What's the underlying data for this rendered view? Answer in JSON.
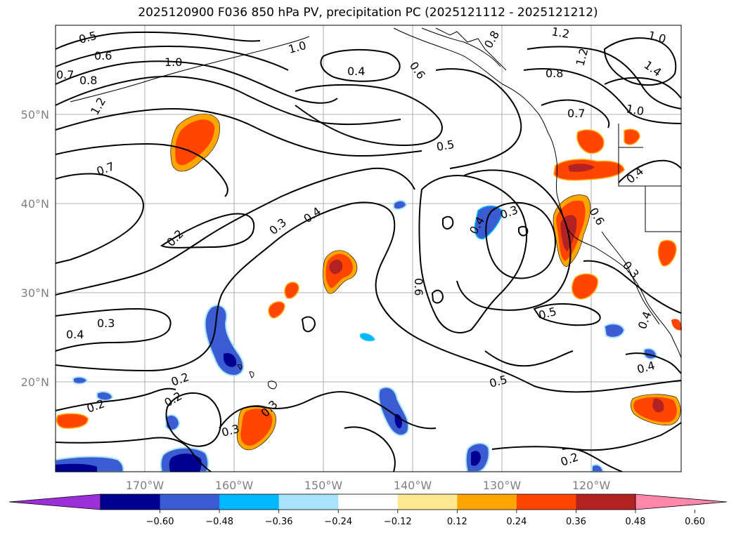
{
  "title": "2025120900 F036 850 hPa PV, precipitation PC (2025121112 - 2025121212)",
  "lat_labels": [
    "50°N",
    "40°N",
    "30°N",
    "20°N"
  ],
  "lon_labels": [
    "170°W",
    "160°W",
    "150°W",
    "140°W",
    "130°W",
    "120°W"
  ],
  "contour_labels": [
    "0.5",
    "0.6",
    "0.7",
    "0.8",
    "1.2",
    "1.0",
    "1.0",
    "0.4",
    "0.6",
    "1.2",
    "0.8",
    "1.2",
    "1.0",
    "1.4",
    "0.8",
    "0.7",
    "1.0",
    "0.5",
    "0.4",
    "0.7",
    "0.2",
    "0.3",
    "0.4",
    "0.4",
    "0.3",
    "0.6",
    "0.6",
    "0.3",
    "0.4",
    "0.3",
    "0.5",
    "0.3",
    "0.4",
    "0.2",
    "0.2",
    "0.3",
    "0.2",
    "0.5",
    "0.4",
    "0.2"
  ],
  "colorbar": {
    "ticks": [
      "−0.60",
      "−0.48",
      "−0.36",
      "−0.24",
      "−0.12",
      "0.12",
      "0.24",
      "0.36",
      "0.48",
      "0.60"
    ],
    "colors": [
      "#9b30d9",
      "#000090",
      "#3a5bd1",
      "#00b8ff",
      "#a8e2fb",
      "#ffffff",
      "#ffe890",
      "#ffa500",
      "#ff4500",
      "#b22222",
      "#ff88aa"
    ]
  },
  "shading_colors": {
    "pos_strong": "#b22222",
    "pos": "#ff4500",
    "pos_edge": "#ffa500",
    "neg": "#3a5bd1",
    "neg_strong": "#000090",
    "neg_edge": "#a8e2fb"
  }
}
